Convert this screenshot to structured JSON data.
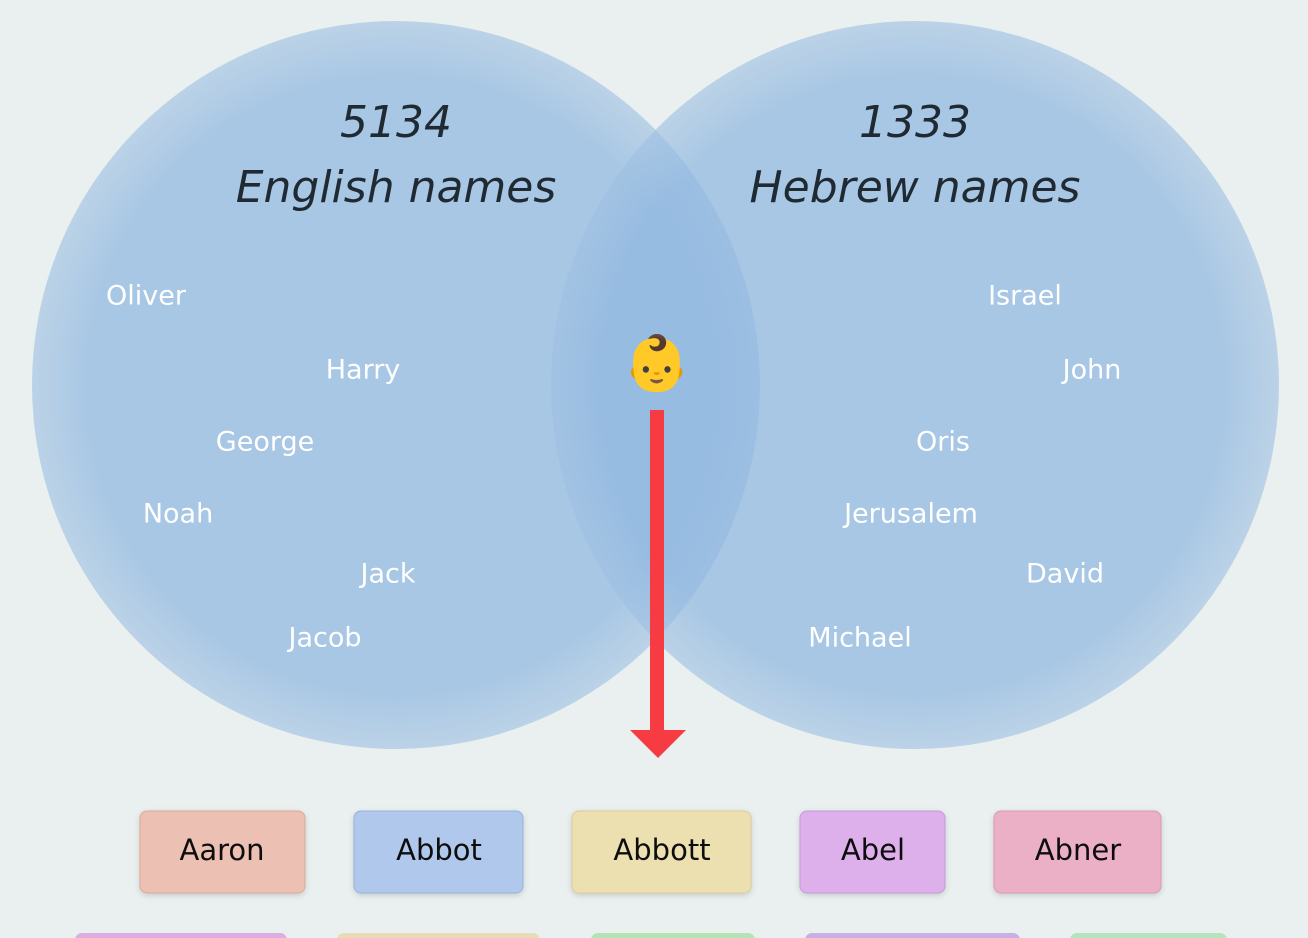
{
  "english": {
    "count": 5134,
    "label": "English names",
    "names": [
      "Oliver",
      "Harry",
      "George",
      "Noah",
      "Jack",
      "Jacob"
    ]
  },
  "hebrew": {
    "count": 1333,
    "label": "Hebrew names",
    "names": [
      "Israel",
      "John",
      "Oris",
      "Jerusalem",
      "David",
      "Michael"
    ]
  },
  "emoji": "👶",
  "buttons": [
    "Aaron",
    "Abbot",
    "Abbott",
    "Abel",
    "Abner"
  ]
}
